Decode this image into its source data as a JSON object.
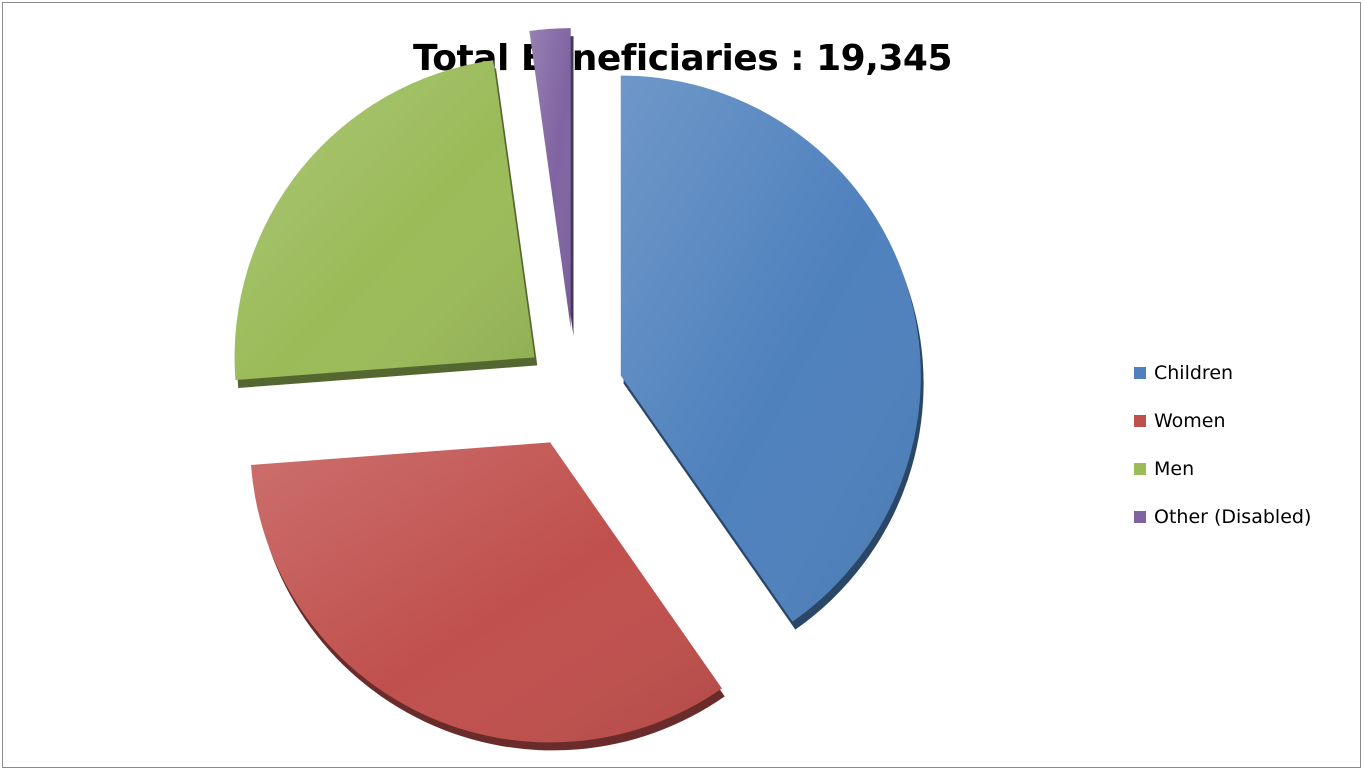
{
  "chart_data": {
    "type": "pie",
    "title": "Total Beneficiaries : 19,345",
    "categories": [
      "Children",
      "Women",
      "Men",
      "Other (Disabled)"
    ],
    "values": [
      40.3,
      33.5,
      24.0,
      2.2
    ],
    "colors": [
      "#4f81bd",
      "#c0504d",
      "#9bbb59",
      "#8064a2"
    ],
    "exploded": true,
    "style": "3d",
    "legend_position": "right"
  }
}
